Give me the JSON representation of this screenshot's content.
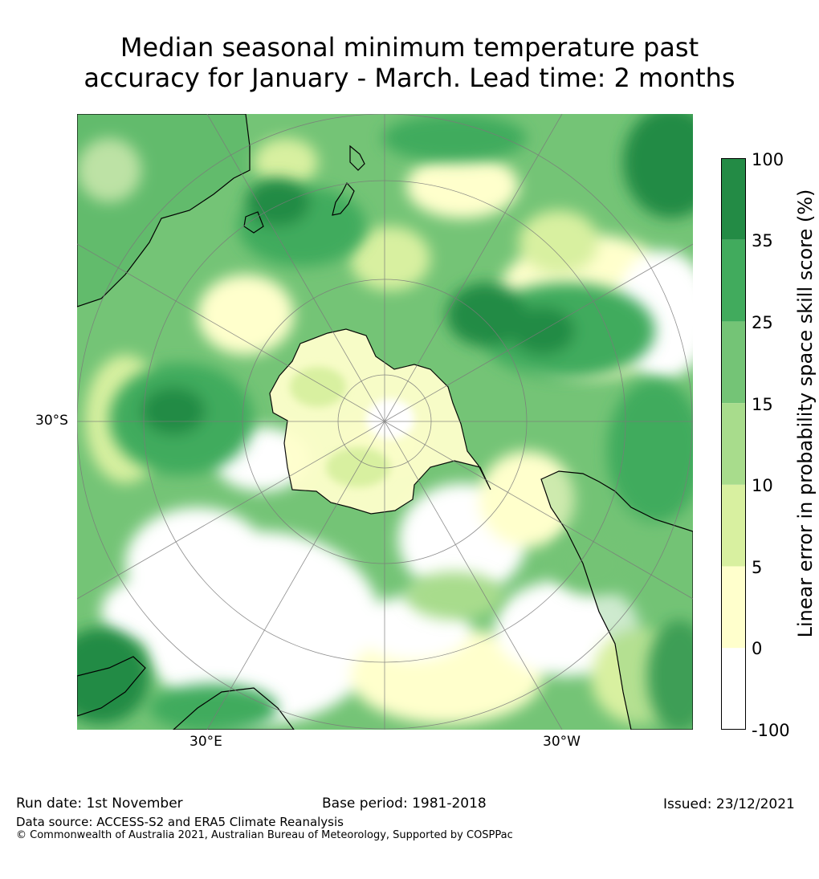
{
  "title_line1": "Median seasonal minimum temperature past",
  "title_line2": "accuracy for January - March. Lead time: 2 months",
  "map": {
    "lat_labels": [
      "30°S"
    ],
    "lon_labels": [
      "30°E",
      "30°W"
    ],
    "colors": {
      "ocean_bg": "#ffffff",
      "coast": "#000000",
      "grid": "#7a7a7a"
    }
  },
  "colorbar": {
    "title": "Linear error in probability space skill score (%)",
    "tick_labels": [
      "100",
      "35",
      "25",
      "15",
      "10",
      "5",
      "0",
      "-100"
    ],
    "bins": [
      {
        "range": "35 to 100",
        "color": "#238b45"
      },
      {
        "range": "25 to 35",
        "color": "#41ab5d"
      },
      {
        "range": "15 to 25",
        "color": "#74c476"
      },
      {
        "range": "10 to 15",
        "color": "#a8dc8c"
      },
      {
        "range": "5 to 10",
        "color": "#d8f0a0"
      },
      {
        "range": "0 to 5",
        "color": "#ffffcc"
      },
      {
        "range": "-100 to 0",
        "color": "#ffffff"
      }
    ]
  },
  "footer": {
    "run_date": "Run date: 1st November",
    "base_period": "Base period: 1981-2018",
    "issued": "Issued: 23/12/2021",
    "data_source": "Data source: ACCESS-S2 and ERA5 Climate Reanalysis",
    "copyright": "© Commonwealth of Australia 2021, Australian Bureau of Meteorology, Supported by COSPPac"
  }
}
